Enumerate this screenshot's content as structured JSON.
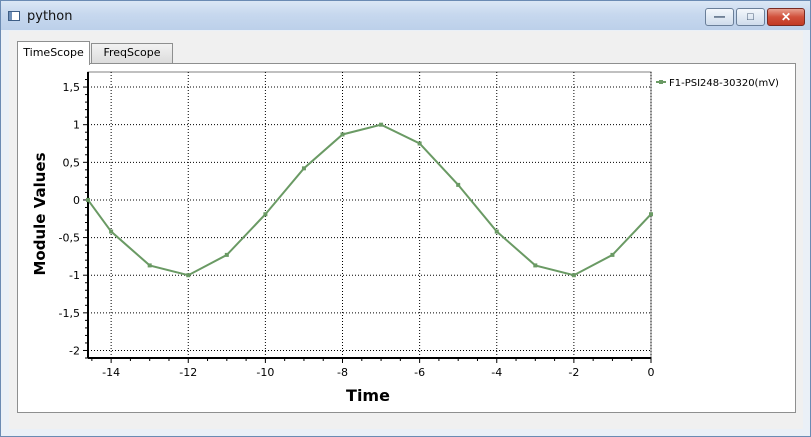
{
  "window": {
    "title": "python",
    "minimize_glyph": "—",
    "maximize_glyph": "□",
    "close_glyph": "✕"
  },
  "tabs": [
    {
      "label": "TimeScope",
      "active": true
    },
    {
      "label": "FreqScope",
      "active": false
    }
  ],
  "colors": {
    "series": "#6a9a64",
    "grid": "#000000",
    "plot_bg": "#ffffff"
  },
  "chart_data": {
    "type": "line",
    "xlabel": "Time",
    "ylabel": "Module Values",
    "xlim": [
      -14.6,
      0
    ],
    "ylim": [
      -2.1,
      1.7
    ],
    "xticks": [
      -14,
      -12,
      -10,
      -8,
      -6,
      -4,
      -2,
      0
    ],
    "xtick_labels": [
      "-14",
      "-12",
      "-10",
      "-8",
      "-6",
      "-4",
      "-2",
      "0"
    ],
    "yticks": [
      1.5,
      1,
      0.5,
      0,
      -0.5,
      -1,
      -1.5,
      -2
    ],
    "ytick_labels": [
      "1,5",
      "1",
      "0,5",
      "0",
      "-0,5",
      "-1",
      "-1,5",
      "-2"
    ],
    "grid": true,
    "legend_position": "right",
    "series": [
      {
        "name": "F1-PSI248-30320(mV)",
        "x": [
          -14.6,
          -14,
          -13,
          -12,
          -11,
          -10,
          -9,
          -8,
          -7,
          -6,
          -5,
          -4,
          -3,
          -2,
          -1,
          0
        ],
        "y": [
          0.0,
          -0.42,
          -0.87,
          -1.0,
          -0.73,
          -0.19,
          0.42,
          0.87,
          1.0,
          0.75,
          0.2,
          -0.42,
          -0.87,
          -1.0,
          -0.73,
          -0.19
        ]
      }
    ]
  }
}
